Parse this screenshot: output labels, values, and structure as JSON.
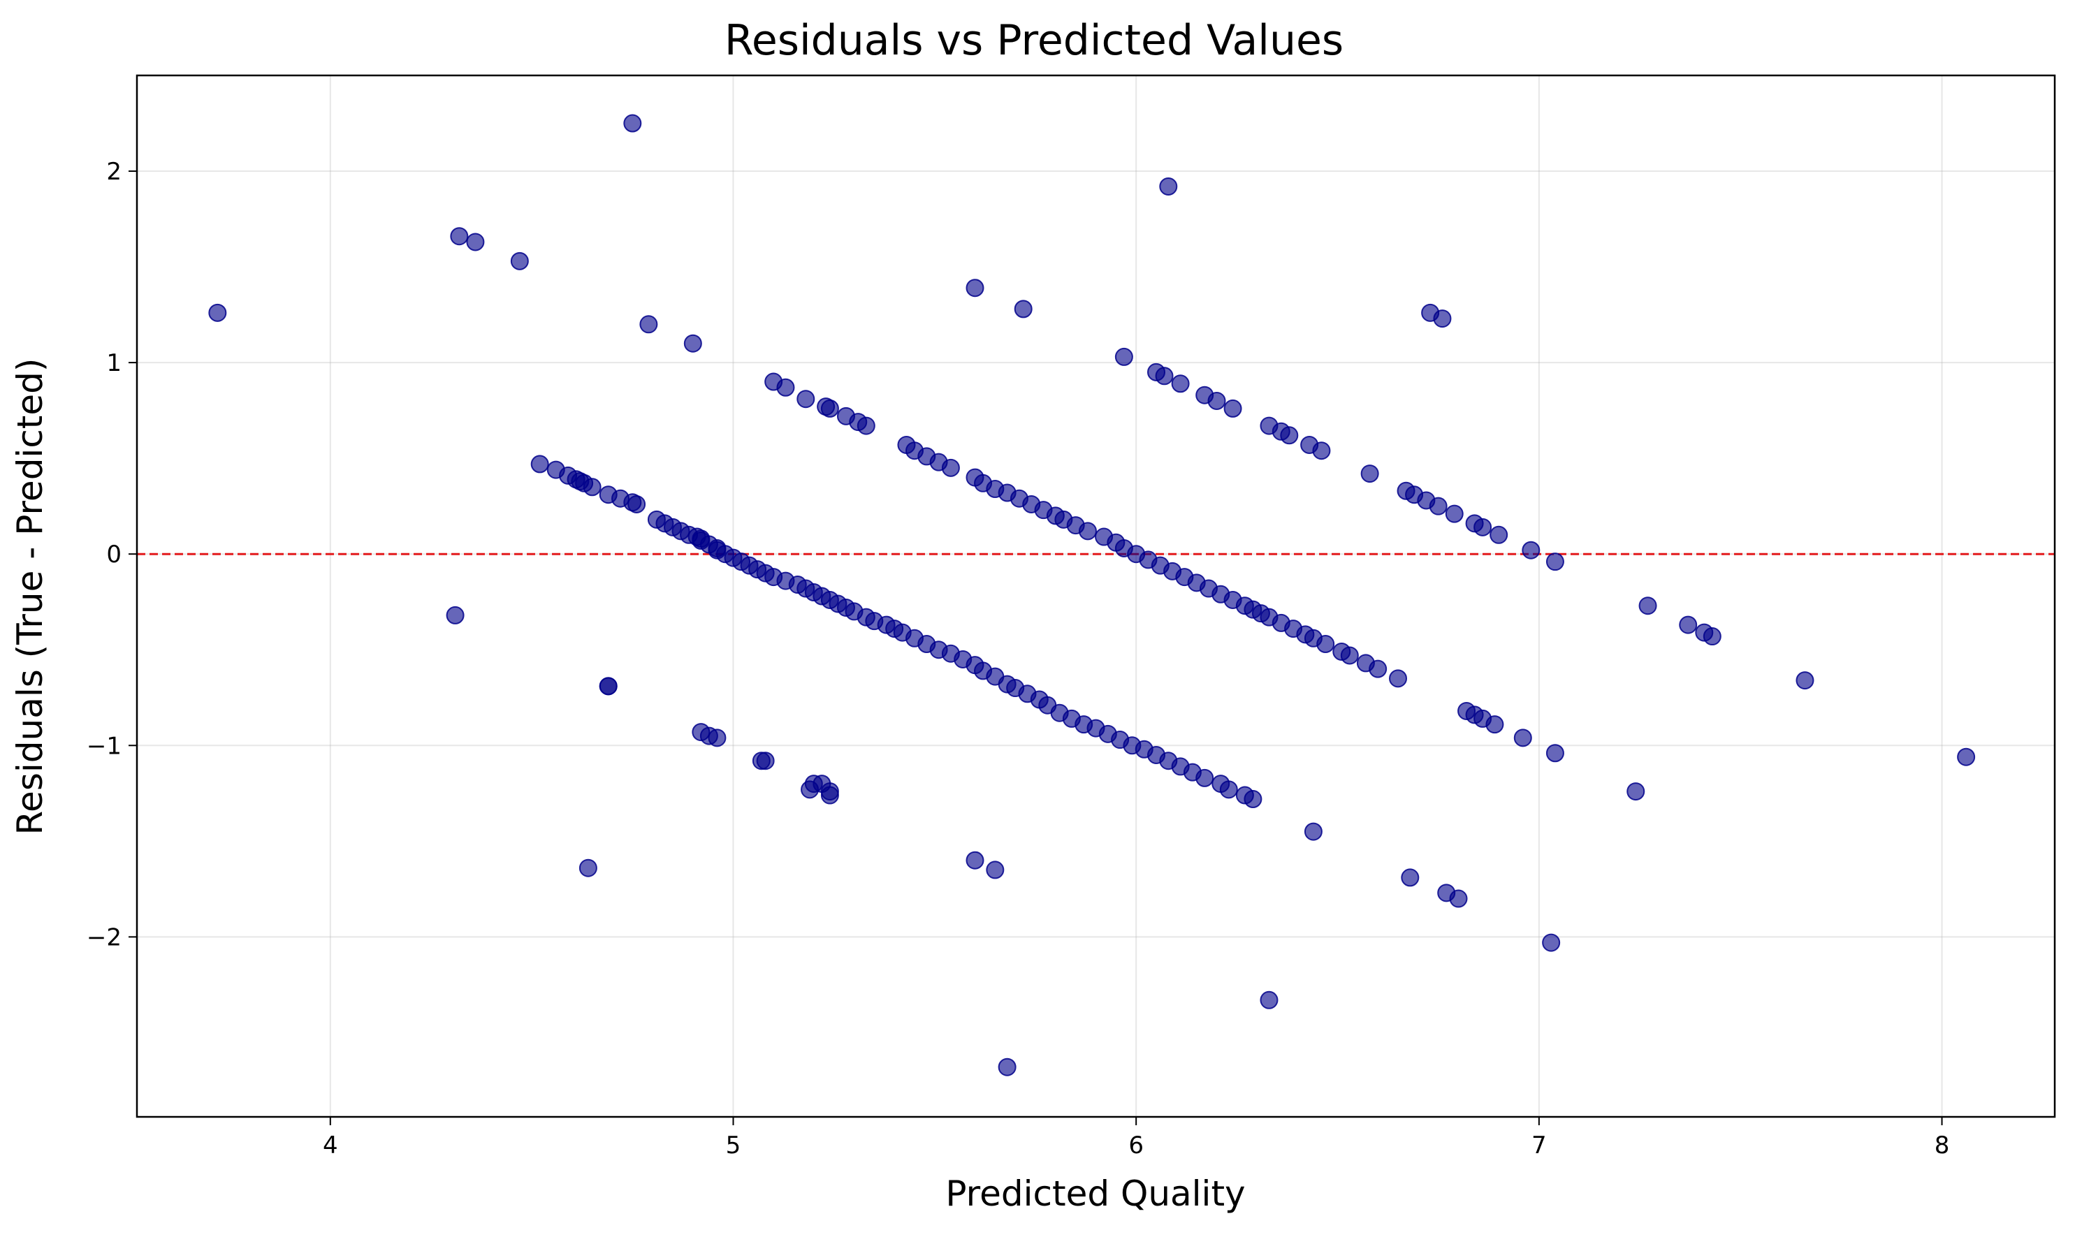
{
  "chart_data": {
    "type": "scatter",
    "title": "Residuals vs Predicted Values",
    "xlabel": "Predicted Quality",
    "ylabel": "Residuals (True - Predicted)",
    "xlim": [
      3.52,
      8.28
    ],
    "ylim": [
      -2.94,
      2.5
    ],
    "xticks": [
      4,
      5,
      6,
      7,
      8
    ],
    "xtick_labels": [
      "4",
      "5",
      "6",
      "7",
      "8"
    ],
    "yticks": [
      -2,
      -1,
      0,
      1,
      2
    ],
    "ytick_labels": [
      "−2",
      "−1",
      "0",
      "1",
      "2"
    ],
    "grid": true,
    "reference_line": {
      "y": 0,
      "color": "#e31a1c",
      "style": "dashed"
    },
    "point_color": "#00008b",
    "point_opacity": 0.6,
    "series": [
      {
        "x": [
          3.72,
          4.31,
          4.32,
          4.36,
          4.47,
          4.52,
          4.56,
          4.59,
          4.61,
          4.62,
          4.63,
          4.65,
          4.69,
          4.69,
          4.72,
          4.75,
          4.75,
          4.76,
          4.79,
          4.81,
          4.83,
          4.85,
          4.87,
          4.89,
          4.9,
          4.91,
          4.92,
          4.92,
          4.94,
          4.96,
          4.96,
          4.98,
          5.0,
          5.02,
          5.04,
          5.06,
          5.08,
          5.1,
          5.13,
          5.16,
          5.18,
          5.2,
          5.22,
          5.24,
          5.26,
          5.28,
          5.3,
          5.33,
          5.35,
          5.38,
          5.4,
          5.42,
          5.45,
          5.48,
          5.51,
          5.54,
          5.57,
          5.6,
          5.62,
          5.65,
          5.68,
          5.7,
          5.73,
          5.76,
          5.78,
          5.81,
          5.84,
          5.87,
          5.9,
          5.93,
          5.96,
          5.99,
          6.02,
          6.05,
          6.08,
          6.11,
          6.14,
          6.17,
          6.21,
          6.23,
          6.27,
          6.29,
          5.07,
          5.22,
          5.19,
          5.24,
          5.1,
          5.13,
          5.18,
          5.23,
          5.24,
          5.28,
          5.31,
          5.33,
          5.43,
          5.45,
          5.48,
          5.51,
          5.54,
          5.6,
          5.62,
          5.65,
          5.68,
          5.71,
          5.74,
          5.77,
          5.8,
          5.82,
          5.85,
          5.88,
          5.92,
          5.95,
          5.97,
          6.0,
          6.03,
          6.06,
          6.09,
          6.12,
          6.15,
          6.18,
          6.21,
          6.24,
          6.27,
          6.29,
          6.31,
          6.33,
          6.36,
          6.39,
          6.42,
          6.44,
          6.47,
          6.51,
          6.53,
          6.57,
          6.6,
          6.65,
          6.82,
          6.84,
          6.86,
          6.89,
          6.96,
          7.04,
          5.6,
          5.72,
          5.97,
          6.05,
          6.07,
          6.11,
          6.17,
          6.2,
          6.24,
          6.33,
          6.36,
          6.38,
          6.43,
          6.46,
          6.58,
          6.67,
          6.69,
          6.72,
          6.75,
          6.79,
          6.84,
          6.86,
          6.9,
          6.98,
          7.04,
          7.27,
          7.37,
          7.41,
          7.43,
          7.66,
          8.06,
          7.24,
          7.03,
          6.68,
          6.77,
          6.8,
          6.44,
          6.33,
          6.08,
          6.73,
          6.76,
          4.92,
          4.94,
          4.96,
          5.08,
          5.2,
          5.24,
          5.6,
          5.65,
          5.68,
          4.69,
          4.64
        ],
        "y": [
          1.26,
          -0.32,
          1.66,
          1.63,
          1.53,
          0.47,
          0.44,
          0.41,
          0.39,
          0.38,
          0.37,
          0.35,
          0.31,
          -0.69,
          0.29,
          0.27,
          2.25,
          0.26,
          1.2,
          0.18,
          0.16,
          0.14,
          0.12,
          0.1,
          1.1,
          0.09,
          0.08,
          0.07,
          0.05,
          0.03,
          0.02,
          0.0,
          -0.02,
          -0.04,
          -0.06,
          -0.08,
          -0.1,
          -0.12,
          -0.14,
          -0.16,
          -0.18,
          -0.2,
          -0.22,
          -0.24,
          -0.26,
          -0.28,
          -0.3,
          -0.33,
          -0.35,
          -0.37,
          -0.39,
          -0.41,
          -0.44,
          -0.47,
          -0.5,
          -0.52,
          -0.55,
          -0.58,
          -0.61,
          -0.64,
          -0.68,
          -0.7,
          -0.73,
          -0.76,
          -0.79,
          -0.83,
          -0.86,
          -0.89,
          -0.91,
          -0.94,
          -0.97,
          -1.0,
          -1.02,
          -1.05,
          -1.08,
          -1.11,
          -1.14,
          -1.17,
          -1.2,
          -1.23,
          -1.26,
          -1.28,
          -1.08,
          -1.2,
          -1.23,
          -1.26,
          0.9,
          0.87,
          0.81,
          0.77,
          0.76,
          0.72,
          0.69,
          0.67,
          0.57,
          0.54,
          0.51,
          0.48,
          0.45,
          0.4,
          0.37,
          0.34,
          0.32,
          0.29,
          0.26,
          0.23,
          0.2,
          0.18,
          0.15,
          0.12,
          0.09,
          0.06,
          0.03,
          0.0,
          -0.03,
          -0.06,
          -0.09,
          -0.12,
          -0.15,
          -0.18,
          -0.21,
          -0.24,
          -0.27,
          -0.29,
          -0.31,
          -0.33,
          -0.36,
          -0.39,
          -0.42,
          -0.44,
          -0.47,
          -0.51,
          -0.53,
          -0.57,
          -0.6,
          -0.65,
          -0.82,
          -0.84,
          -0.86,
          -0.89,
          -0.96,
          -1.04,
          1.39,
          1.28,
          1.03,
          0.95,
          0.93,
          0.89,
          0.83,
          0.8,
          0.76,
          0.67,
          0.64,
          0.62,
          0.57,
          0.54,
          0.42,
          0.33,
          0.31,
          0.28,
          0.25,
          0.21,
          0.16,
          0.14,
          0.1,
          0.02,
          -0.04,
          -0.27,
          -0.37,
          -0.41,
          -0.43,
          -0.66,
          -1.06,
          -1.24,
          -2.03,
          -1.69,
          -1.77,
          -1.8,
          -1.45,
          -2.33,
          1.92,
          1.26,
          1.23,
          -0.93,
          -0.95,
          -0.96,
          -1.08,
          -1.2,
          -1.24,
          -1.6,
          -1.65,
          -2.68,
          -0.69,
          -1.64
        ]
      }
    ]
  }
}
